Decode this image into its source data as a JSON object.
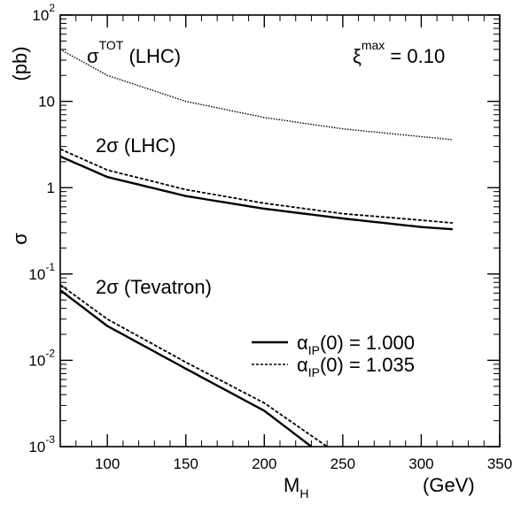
{
  "chart_data": {
    "type": "line",
    "title": "",
    "xlabel": "M",
    "xlabel_sub": "H",
    "xlabel_unit": "(GeV)",
    "ylabel": "σ",
    "ylabel_unit": "(pb)",
    "x_scale": "linear",
    "y_scale": "log",
    "xlim": [
      70,
      350
    ],
    "ylim": [
      0.001,
      100
    ],
    "x_ticks": [
      "100",
      "150",
      "200",
      "250",
      "300",
      "350"
    ],
    "y_ticks": [
      {
        "base": "10",
        "exp": "-3"
      },
      {
        "base": "10",
        "exp": "-2"
      },
      {
        "base": "10",
        "exp": "-1"
      },
      {
        "base": "1",
        "exp": ""
      },
      {
        "base": "10",
        "exp": ""
      },
      {
        "base": "10",
        "exp": "2"
      }
    ],
    "grid": false,
    "legend_position": "bottom-right",
    "legend": [
      {
        "label_prefix": "α",
        "label_sub": "IP",
        "label_rest": "(0) = 1.000",
        "style": "solid"
      },
      {
        "label_prefix": "α",
        "label_sub": "IP",
        "label_rest": "(0) = 1.035",
        "style": "dashed"
      }
    ],
    "annotations": {
      "lhc_tot": {
        "symbol": "σ",
        "sup": "TOT",
        "text": " (LHC)"
      },
      "xi": {
        "symbol": "ξ",
        "sup": "max",
        "text": " = 0.10"
      },
      "lhc_2s": {
        "text": "2σ (LHC)"
      },
      "tev_2s": {
        "text": "2σ (Tevatron)"
      }
    },
    "series": [
      {
        "id": "tot_lhc",
        "style": "dotted",
        "x": [
          70,
          100,
          150,
          200,
          250,
          300,
          320
        ],
        "y": [
          40,
          20,
          10,
          6.5,
          4.8,
          3.9,
          3.6
        ]
      },
      {
        "id": "lhc_100",
        "style": "solid",
        "x": [
          70,
          100,
          150,
          200,
          250,
          300,
          320
        ],
        "y": [
          2.3,
          1.33,
          0.8,
          0.57,
          0.44,
          0.35,
          0.33
        ]
      },
      {
        "id": "lhc_1035",
        "style": "dashed",
        "x": [
          70,
          100,
          150,
          200,
          250,
          300,
          320
        ],
        "y": [
          2.8,
          1.6,
          0.95,
          0.66,
          0.5,
          0.42,
          0.39
        ]
      },
      {
        "id": "tev_100",
        "style": "solid",
        "x": [
          70,
          100,
          150,
          200,
          230
        ],
        "y": [
          0.065,
          0.025,
          0.008,
          0.0026,
          0.001
        ]
      },
      {
        "id": "tev_1035",
        "style": "dashed",
        "x": [
          70,
          100,
          150,
          200,
          240
        ],
        "y": [
          0.075,
          0.03,
          0.0095,
          0.0032,
          0.001
        ]
      }
    ]
  }
}
